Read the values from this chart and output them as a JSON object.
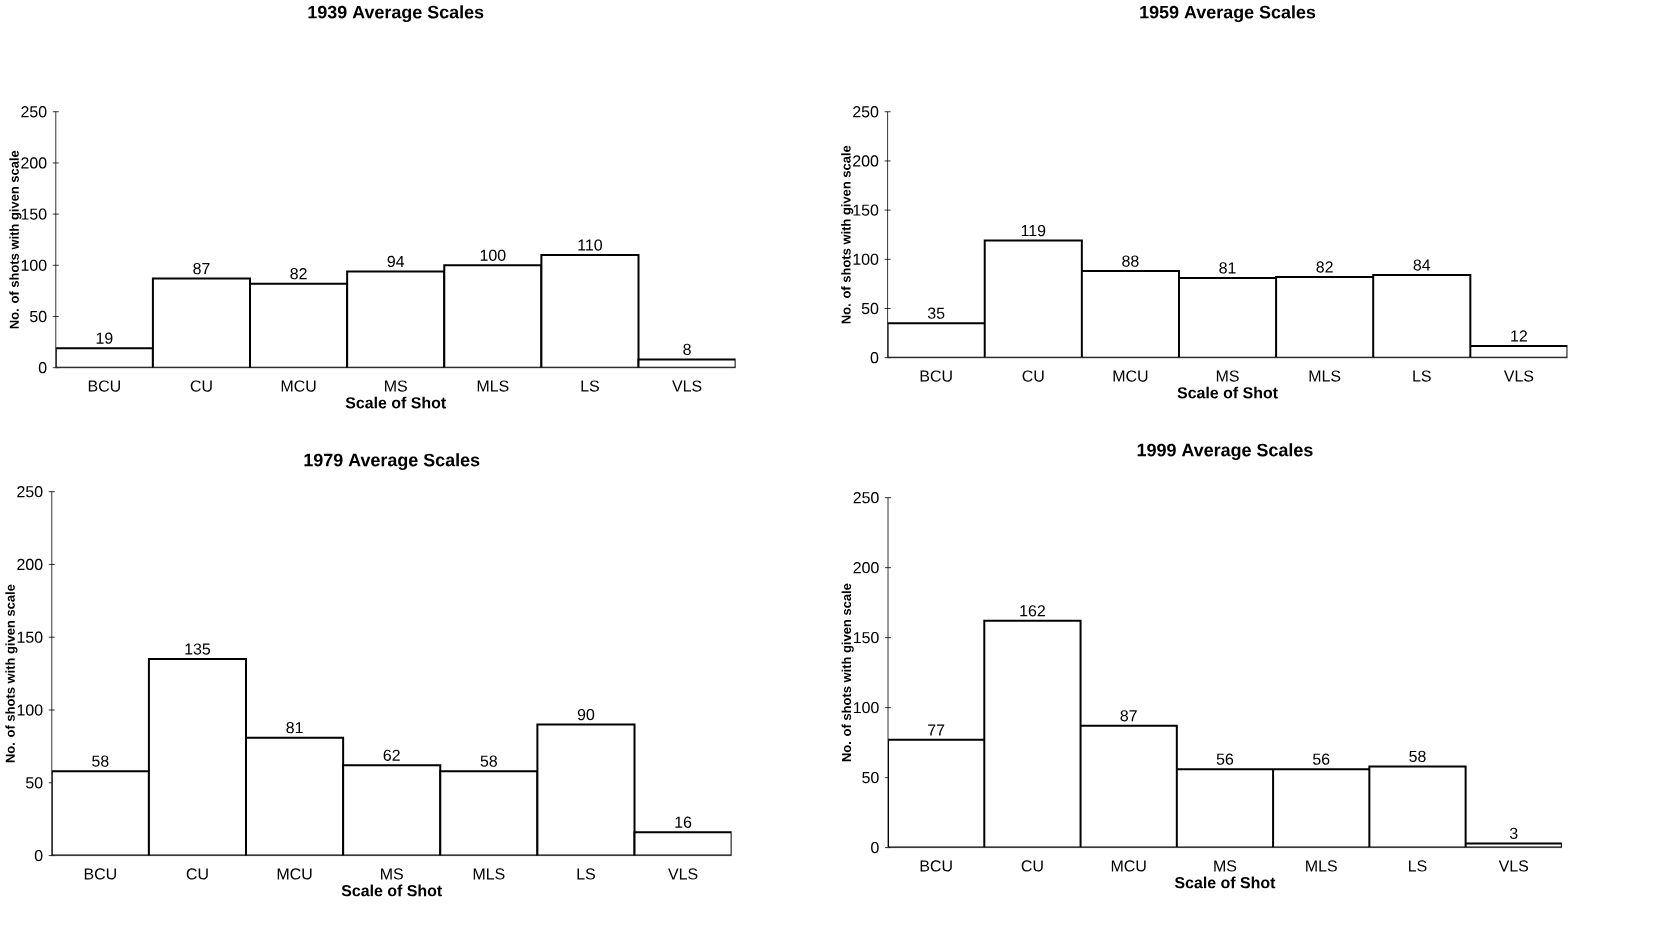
{
  "chart_data": [
    {
      "type": "bar",
      "title": "1939 Average Scales",
      "xlabel": "Scale of Shot",
      "ylabel": "No. of shots with given scale",
      "categories": [
        "BCU",
        "CU",
        "MCU",
        "MS",
        "MLS",
        "LS",
        "VLS"
      ],
      "values": [
        19,
        87,
        82,
        94,
        100,
        110,
        8
      ],
      "color": "#ffffff",
      "ylim": [
        0,
        250
      ],
      "yticks": [
        0,
        50,
        100,
        150,
        200,
        250
      ],
      "data_labels": true
    },
    {
      "type": "bar",
      "title": "1959 Average Scales",
      "xlabel": "Scale of Shot",
      "ylabel": "No. of shots with given scale",
      "categories": [
        "BCU",
        "CU",
        "MCU",
        "MS",
        "MLS",
        "LS",
        "VLS"
      ],
      "values": [
        35,
        119,
        88,
        81,
        82,
        84,
        12
      ],
      "color": "#ffffff",
      "ylim": [
        0,
        250
      ],
      "yticks": [
        0,
        50,
        100,
        150,
        200,
        250
      ],
      "data_labels": true
    },
    {
      "type": "bar",
      "title": "1979 Average Scales",
      "xlabel": "Scale of Shot",
      "ylabel": "No. of shots with given scale",
      "categories": [
        "BCU",
        "CU",
        "MCU",
        "MS",
        "MLS",
        "LS",
        "VLS"
      ],
      "values": [
        58,
        135,
        81,
        62,
        58,
        90,
        16
      ],
      "color": "#ffffff",
      "ylim": [
        0,
        250
      ],
      "yticks": [
        0,
        50,
        100,
        150,
        200,
        250
      ],
      "data_labels": true
    },
    {
      "type": "bar",
      "title": "1999 Average Scales",
      "xlabel": "Scale of Shot",
      "ylabel": "No. of shots with given scale",
      "categories": [
        "BCU",
        "CU",
        "MCU",
        "MS",
        "MLS",
        "LS",
        "VLS"
      ],
      "values": [
        77,
        162,
        87,
        56,
        56,
        58,
        3
      ],
      "color": "#ffffff",
      "ylim": [
        0,
        250
      ],
      "yticks": [
        0,
        50,
        100,
        150,
        200,
        250
      ],
      "data_labels": true
    }
  ]
}
